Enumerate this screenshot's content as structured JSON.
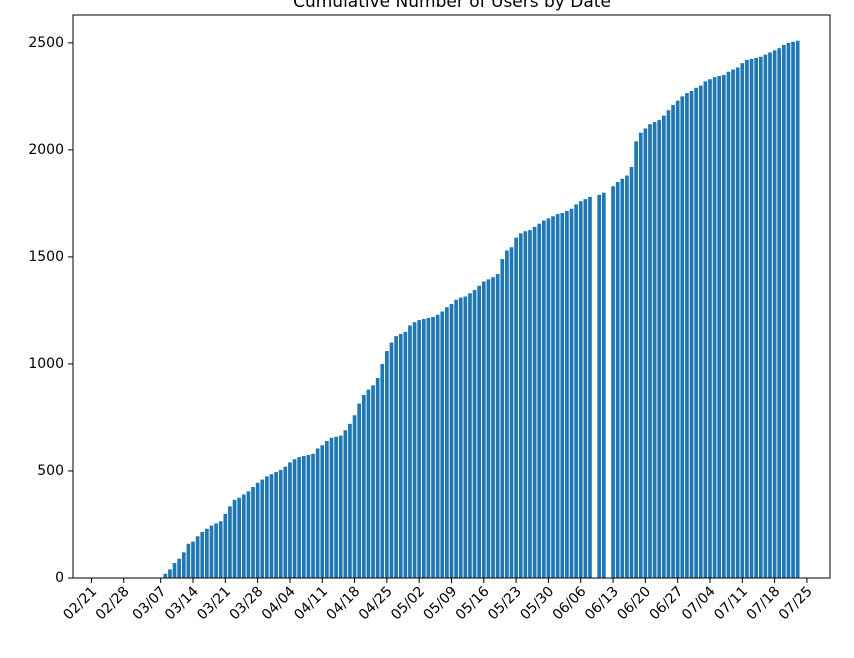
{
  "chart_data": {
    "type": "bar",
    "title": "Cumulative Number of Users by Date",
    "color": "#1f77b4",
    "x": [
      "03/08",
      "03/09",
      "03/10",
      "03/11",
      "03/12",
      "03/13",
      "03/14",
      "03/15",
      "03/16",
      "03/17",
      "03/18",
      "03/19",
      "03/20",
      "03/21",
      "03/22",
      "03/23",
      "03/24",
      "03/25",
      "03/26",
      "03/27",
      "03/28",
      "03/29",
      "03/30",
      "03/31",
      "04/01",
      "04/02",
      "04/03",
      "04/04",
      "04/05",
      "04/06",
      "04/07",
      "04/08",
      "04/09",
      "04/10",
      "04/11",
      "04/12",
      "04/13",
      "04/14",
      "04/15",
      "04/16",
      "04/17",
      "04/18",
      "04/19",
      "04/20",
      "04/21",
      "04/22",
      "04/23",
      "04/24",
      "04/25",
      "04/26",
      "04/27",
      "04/28",
      "04/29",
      "04/30",
      "05/01",
      "05/02",
      "05/03",
      "05/04",
      "05/05",
      "05/06",
      "05/07",
      "05/08",
      "05/09",
      "05/10",
      "05/11",
      "05/12",
      "05/13",
      "05/14",
      "05/15",
      "05/16",
      "05/17",
      "05/18",
      "05/19",
      "05/20",
      "05/21",
      "05/22",
      "05/23",
      "05/24",
      "05/25",
      "05/26",
      "05/27",
      "05/28",
      "05/29",
      "05/30",
      "05/31",
      "06/01",
      "06/02",
      "06/03",
      "06/04",
      "06/05",
      "06/06",
      "06/07",
      "06/08",
      "06/10",
      "06/11",
      "06/13",
      "06/14",
      "06/15",
      "06/16",
      "06/17",
      "06/18",
      "06/19",
      "06/20",
      "06/21",
      "06/22",
      "06/23",
      "06/24",
      "06/25",
      "06/26",
      "06/27",
      "06/28",
      "06/29",
      "06/30",
      "07/01",
      "07/02",
      "07/03",
      "07/04",
      "07/05",
      "07/06",
      "07/07",
      "07/08",
      "07/09",
      "07/10",
      "07/11",
      "07/12",
      "07/13",
      "07/14",
      "07/15",
      "07/16",
      "07/17",
      "07/18",
      "07/19",
      "07/20",
      "07/21",
      "07/22",
      "07/23"
    ],
    "values": [
      20,
      40,
      70,
      90,
      120,
      160,
      170,
      195,
      215,
      230,
      245,
      255,
      265,
      300,
      335,
      365,
      375,
      390,
      405,
      425,
      445,
      460,
      475,
      485,
      495,
      505,
      520,
      540,
      555,
      565,
      570,
      575,
      580,
      605,
      620,
      640,
      655,
      660,
      665,
      690,
      720,
      760,
      815,
      855,
      880,
      900,
      935,
      1000,
      1060,
      1100,
      1130,
      1140,
      1150,
      1180,
      1195,
      1205,
      1210,
      1215,
      1220,
      1230,
      1245,
      1265,
      1280,
      1300,
      1310,
      1315,
      1330,
      1345,
      1365,
      1385,
      1395,
      1405,
      1420,
      1490,
      1530,
      1545,
      1590,
      1610,
      1620,
      1625,
      1640,
      1655,
      1670,
      1680,
      1690,
      1700,
      1705,
      1715,
      1725,
      1745,
      1760,
      1770,
      1780,
      1790,
      1800,
      1830,
      1850,
      1865,
      1880,
      1920,
      2040,
      2080,
      2100,
      2120,
      2130,
      2140,
      2160,
      2185,
      2210,
      2230,
      2250,
      2265,
      2275,
      2290,
      2300,
      2320,
      2330,
      2340,
      2345,
      2350,
      2365,
      2375,
      2385,
      2405,
      2420,
      2425,
      2430,
      2435,
      2445,
      2455,
      2465,
      2475,
      2490,
      2500,
      2505,
      2510
    ],
    "xlim": [
      "02/17",
      "07/30"
    ],
    "xticks": [
      "02/21",
      "02/28",
      "03/07",
      "03/14",
      "03/21",
      "03/28",
      "04/04",
      "04/11",
      "04/18",
      "04/25",
      "05/02",
      "05/09",
      "05/16",
      "05/23",
      "05/30",
      "06/06",
      "06/13",
      "06/20",
      "06/27",
      "07/04",
      "07/11",
      "07/18",
      "07/25"
    ],
    "ylim": [
      0,
      2630
    ],
    "yticks": [
      0,
      500,
      1000,
      1500,
      2000,
      2500
    ]
  }
}
